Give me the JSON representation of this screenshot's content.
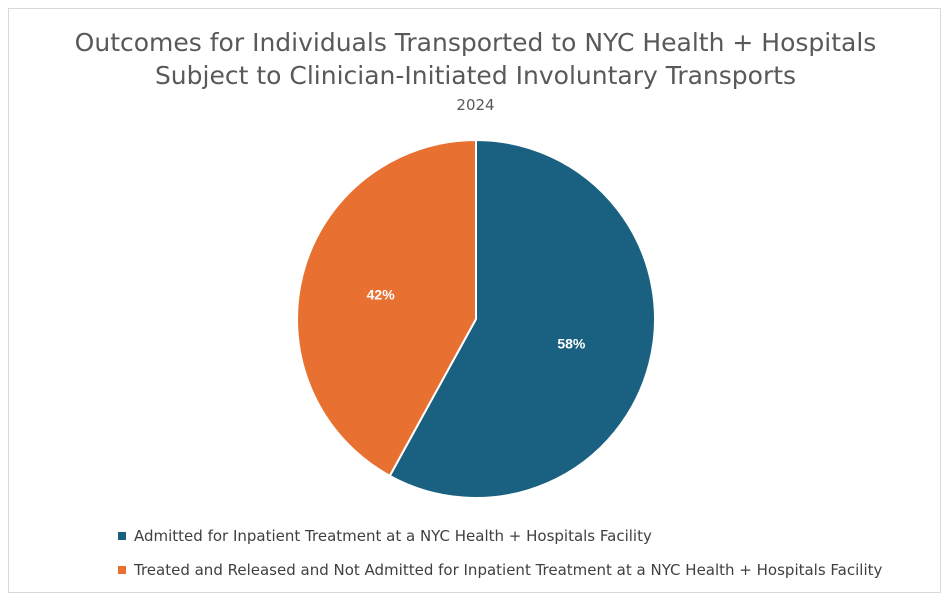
{
  "chart_data": {
    "type": "pie",
    "title_line1": "Outcomes for Individuals Transported to NYC Health + Hospitals",
    "title_line2": "Subject to Clinician-Initiated Involuntary Transports",
    "subtitle": "2024",
    "slices": [
      {
        "label": "Admitted for Inpatient Treatment at a NYC Health + Hospitals Facility",
        "value": 58,
        "display": "58%",
        "color": "#1a6080"
      },
      {
        "label": "Treated and Released and Not Admitted for Inpatient Treatment at a NYC Health + Hospitals Facility",
        "value": 42,
        "display": "42%",
        "color": "#e87131"
      }
    ],
    "legend_position": "bottom-left"
  }
}
